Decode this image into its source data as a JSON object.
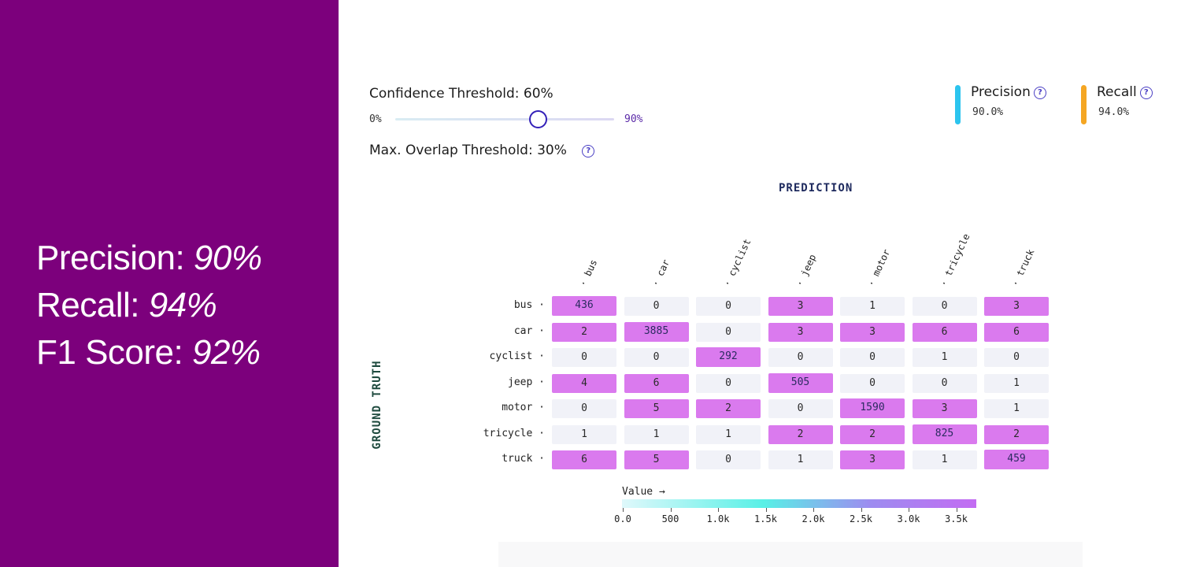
{
  "summary": {
    "precision_label": "Precision: ",
    "precision_value": "90%",
    "recall_label": "Recall: ",
    "recall_value": "94%",
    "f1_label": "F1 Score: ",
    "f1_value": "92%"
  },
  "controls": {
    "confidence_label": "Confidence Threshold: 60%",
    "slider_min": "0%",
    "slider_max": "90%",
    "slider_value": 60,
    "overlap_label": "Max. Overlap Threshold: 30%",
    "help_glyph": "?"
  },
  "legend": {
    "precision_title": "Precision",
    "precision_value": "90.0%",
    "precision_color": "#2cc4ee",
    "recall_title": "Recall",
    "recall_value": "94.0%",
    "recall_color": "#f5a623"
  },
  "matrix": {
    "x_title": "PREDICTION",
    "y_title": "GROUND TRUTH",
    "colorbar_title": "Value →",
    "colorbar_ticks": [
      "0.0",
      "500",
      "1.0k",
      "1.5k",
      "2.0k",
      "2.5k",
      "3.0k",
      "3.5k"
    ]
  },
  "chart_data": {
    "type": "heatmap",
    "x_categories": [
      "bus",
      "car",
      "cyclist",
      "jeep",
      "motor",
      "tricycle",
      "truck"
    ],
    "y_categories": [
      "bus",
      "car",
      "cyclist",
      "jeep",
      "motor",
      "tricycle",
      "truck"
    ],
    "values": [
      [
        436,
        0,
        0,
        3,
        1,
        0,
        3
      ],
      [
        2,
        3885,
        0,
        3,
        3,
        6,
        6
      ],
      [
        0,
        0,
        292,
        0,
        0,
        1,
        0
      ],
      [
        4,
        6,
        0,
        505,
        0,
        0,
        1
      ],
      [
        0,
        5,
        2,
        0,
        1590,
        3,
        1
      ],
      [
        1,
        1,
        1,
        2,
        2,
        825,
        2
      ],
      [
        6,
        5,
        0,
        1,
        3,
        1,
        459
      ]
    ],
    "value_range": [
      0,
      3885
    ]
  }
}
